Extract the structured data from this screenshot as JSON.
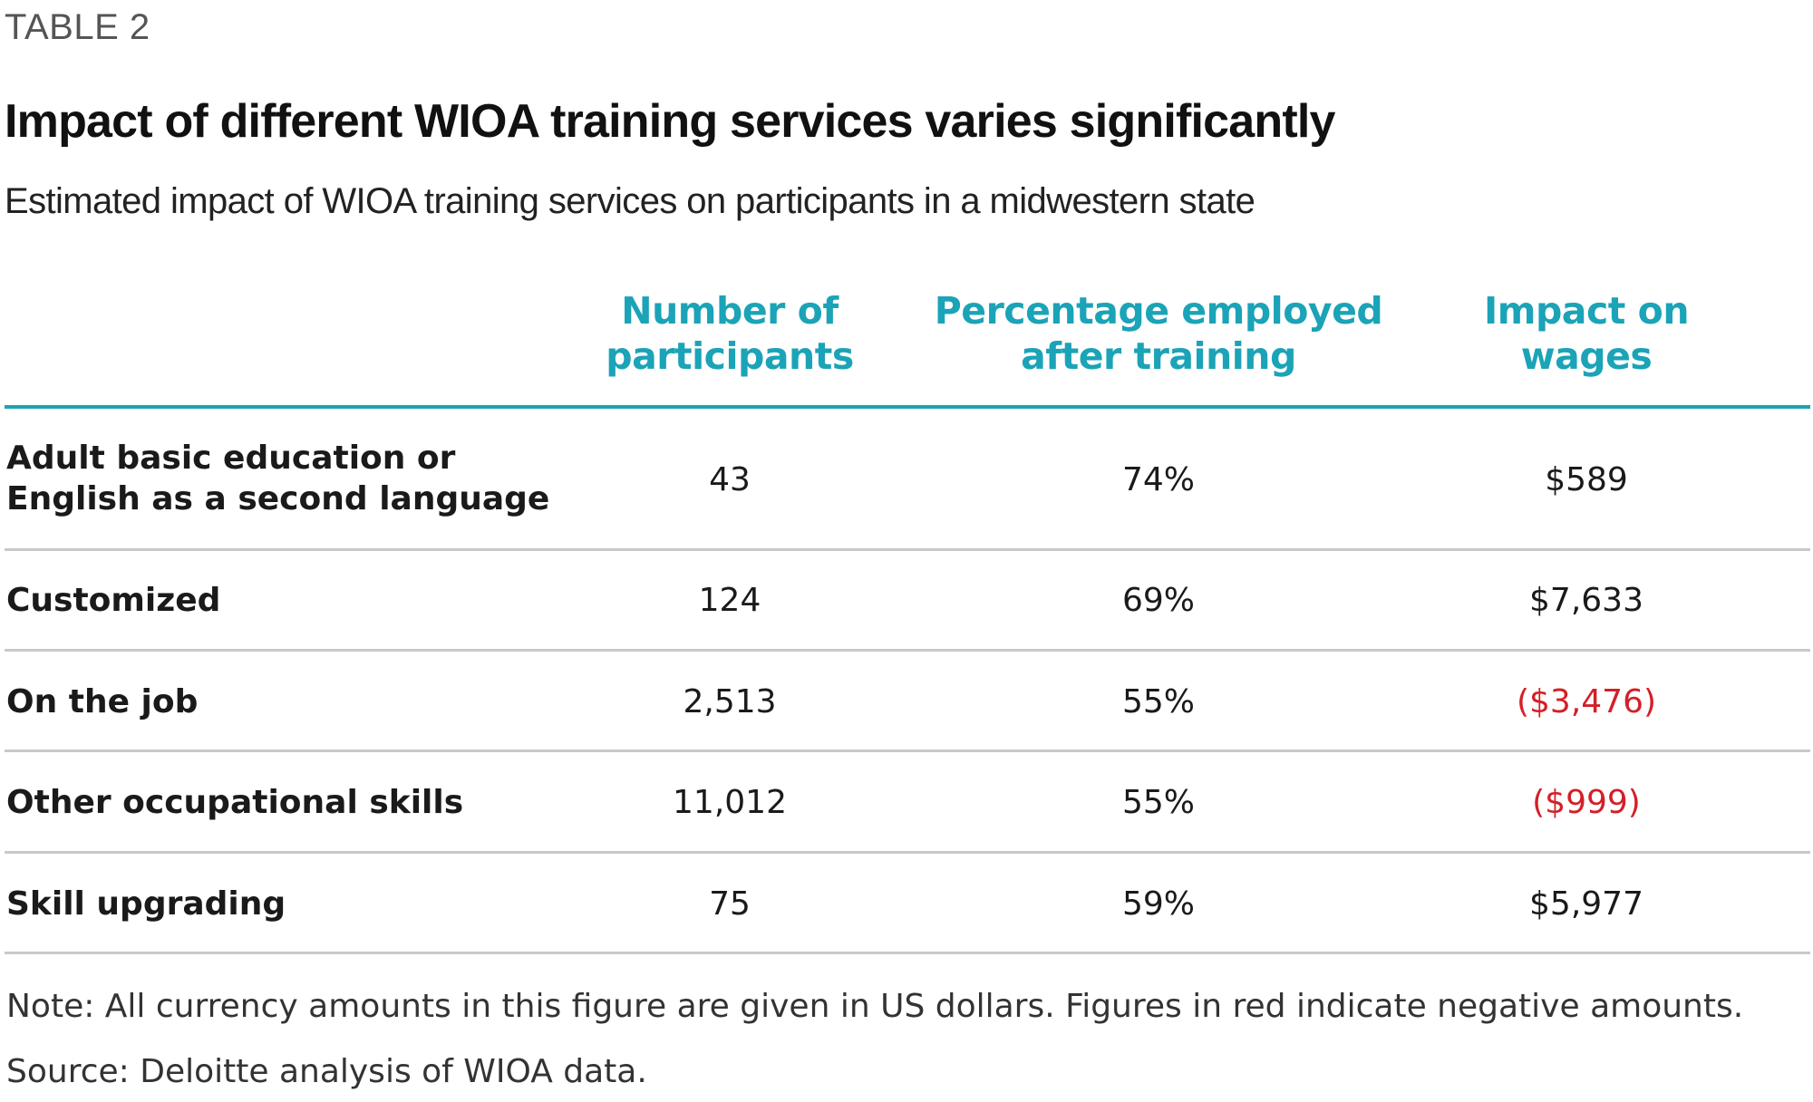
{
  "header": {
    "eyebrow": "TABLE 2",
    "title": "Impact of different WIOA training services varies significantly",
    "subtitle": "Estimated impact of WIOA training services on participants in a midwestern state"
  },
  "colors": {
    "accent": "#1ba3b7",
    "negative": "#d41f26",
    "text": "#1a1a1a",
    "rule": "#c9c9c9"
  },
  "table": {
    "columns": [
      {
        "line1": "Number of",
        "line2": "participants"
      },
      {
        "line1": "Percentage employed",
        "line2": "after training"
      },
      {
        "line1": "Impact on",
        "line2": "wages"
      }
    ],
    "rows": [
      {
        "label_line1": "Adult basic education or",
        "label_line2": "English as a second language",
        "participants": "43",
        "employed": "74%",
        "wages": "$589",
        "wages_negative": false
      },
      {
        "label_line1": "Customized",
        "label_line2": "",
        "participants": "124",
        "employed": "69%",
        "wages": "$7,633",
        "wages_negative": false
      },
      {
        "label_line1": "On the job",
        "label_line2": "",
        "participants": "2,513",
        "employed": "55%",
        "wages": "($3,476)",
        "wages_negative": true
      },
      {
        "label_line1": "Other occupational skills",
        "label_line2": "",
        "participants": "11,012",
        "employed": "55%",
        "wages": "($999)",
        "wages_negative": true
      },
      {
        "label_line1": "Skill upgrading",
        "label_line2": "",
        "participants": "75",
        "employed": "59%",
        "wages": "$5,977",
        "wages_negative": false
      }
    ]
  },
  "footer": {
    "note": "Note: All currency amounts in this figure are given in US dollars. Figures in red indicate negative amounts.",
    "source": "Source: Deloitte analysis of WIOA data."
  }
}
